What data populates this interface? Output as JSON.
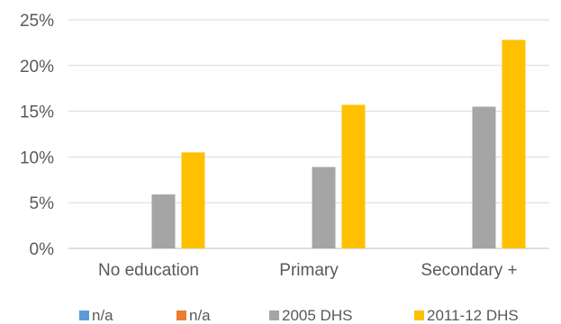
{
  "chart_data": {
    "type": "bar",
    "categories": [
      "No education",
      "Primary",
      "Secondary +"
    ],
    "series": [
      {
        "name": "n/a",
        "color": "#5B9BD5",
        "values": [
          0,
          0,
          0
        ]
      },
      {
        "name": "n/a",
        "color": "#ED7D31",
        "values": [
          0,
          0,
          0
        ]
      },
      {
        "name": "2005 DHS",
        "color": "#A5A5A5",
        "values": [
          5.9,
          8.9,
          15.5
        ]
      },
      {
        "name": "2011-12 DHS",
        "color": "#FFC000",
        "values": [
          10.5,
          15.7,
          22.8
        ]
      }
    ],
    "yticks": [
      "0%",
      "5%",
      "10%",
      "15%",
      "20%",
      "25%"
    ],
    "ylim": [
      0,
      25
    ],
    "grid": true,
    "legend_position": "bottom"
  }
}
